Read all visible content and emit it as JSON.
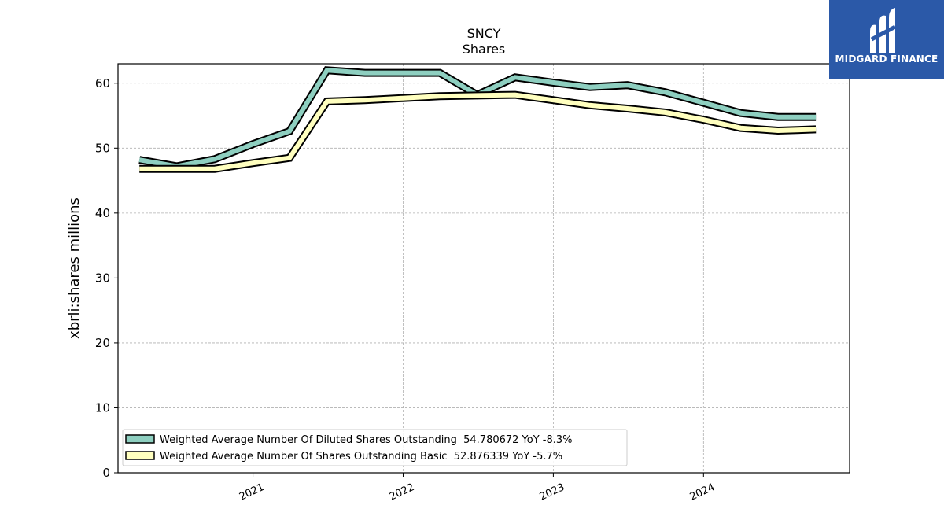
{
  "chart_data": {
    "type": "line",
    "title": "SNCY",
    "subtitle": "Shares",
    "ylabel": "xbrli:shares millions",
    "xlabel": "",
    "ylim": [
      0,
      63
    ],
    "yticks": [
      0,
      10,
      20,
      30,
      40,
      50,
      60
    ],
    "xticks": [
      "2021",
      "2022",
      "2023",
      "2024"
    ],
    "grid": true,
    "legend_position": "lower-left",
    "series": [
      {
        "name": "Weighted Average Number Of Diluted Shares Outstanding  54.780672 YoY -8.3%",
        "color": "#8ecfc0",
        "x": [
          "2020-03-31",
          "2020-06-30",
          "2020-09-30",
          "2020-12-31",
          "2021-03-31",
          "2021-06-30",
          "2021-09-30",
          "2021-12-31",
          "2022-03-31",
          "2022-06-30",
          "2022-09-30",
          "2022-12-31",
          "2023-03-31",
          "2023-06-30",
          "2023-09-30",
          "2023-12-31",
          "2024-03-31",
          "2024-06-30",
          "2024-09-30"
        ],
        "values": [
          48.2,
          47.2,
          48.3,
          50.6,
          52.6,
          62.0,
          61.6,
          61.6,
          61.6,
          58.2,
          60.9,
          60.1,
          59.4,
          59.7,
          58.6,
          57.0,
          55.4,
          54.8,
          54.8
        ]
      },
      {
        "name": "Weighted Average Number Of Shares Outstanding Basic  52.876339 YoY -5.7%",
        "color": "#ffffbf",
        "x": [
          "2020-03-31",
          "2020-06-30",
          "2020-09-30",
          "2020-12-31",
          "2021-03-31",
          "2021-06-30",
          "2021-09-30",
          "2021-12-31",
          "2022-03-31",
          "2022-06-30",
          "2022-09-30",
          "2022-12-31",
          "2023-03-31",
          "2023-06-30",
          "2023-09-30",
          "2023-12-31",
          "2024-03-31",
          "2024-06-30",
          "2024-09-30"
        ],
        "values": [
          46.8,
          46.8,
          46.8,
          47.7,
          48.5,
          57.2,
          57.4,
          57.7,
          58.0,
          58.1,
          58.2,
          57.4,
          56.6,
          56.1,
          55.5,
          54.4,
          53.1,
          52.7,
          52.9
        ]
      }
    ]
  },
  "logo": {
    "text": "MIDGARD FINANCE",
    "color": "#2b59a8"
  }
}
